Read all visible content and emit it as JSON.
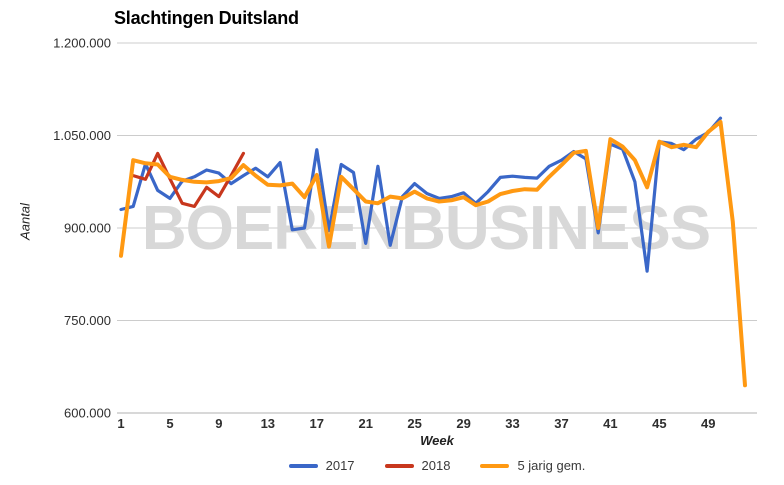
{
  "watermark": "BOERENBUSINESS",
  "chart_data": {
    "type": "line",
    "title": "Slachtingen Duitsland",
    "xlabel": "Week",
    "ylabel": "Aantal",
    "xlim": [
      1,
      52
    ],
    "ylim": [
      600000,
      1200000
    ],
    "grid": true,
    "legend_position": "bottom",
    "x_ticks": [
      1,
      5,
      9,
      13,
      17,
      21,
      25,
      29,
      33,
      37,
      41,
      45,
      49
    ],
    "y_ticks": [
      {
        "value": 1200000,
        "label": "1.200.000"
      },
      {
        "value": 1050000,
        "label": "1.050.000"
      },
      {
        "value": 900000,
        "label": "900.000"
      },
      {
        "value": 750000,
        "label": "750.000"
      },
      {
        "value": 600000,
        "label": "600.000"
      }
    ],
    "series": [
      {
        "name": "2017",
        "color": "#3a67c8",
        "start_week": 1,
        "values": [
          930000,
          935000,
          1004000,
          961000,
          948000,
          976000,
          983000,
          994000,
          989000,
          972000,
          985000,
          997000,
          983000,
          1006000,
          897000,
          900000,
          1027000,
          896000,
          1003000,
          990000,
          875000,
          1000000,
          872000,
          951000,
          972000,
          956000,
          948000,
          951000,
          957000,
          940000,
          959000,
          982000,
          984000,
          982000,
          981000,
          1000000,
          1010000,
          1024000,
          1012000,
          892000,
          1036000,
          1028000,
          975000,
          830000,
          1040000,
          1037000,
          1027000,
          1044000,
          1055000,
          1078000
        ]
      },
      {
        "name": "2018",
        "color": "#c8371d",
        "start_week": 2,
        "values": [
          985000,
          979000,
          1021000,
          980000,
          940000,
          935000,
          966000,
          951000,
          985000,
          1021000
        ]
      },
      {
        "name": "5 jarig gem.",
        "color": "#ff9912",
        "start_week": 1,
        "values": [
          855000,
          1010000,
          1005000,
          1003000,
          983000,
          978000,
          975000,
          974000,
          976000,
          981000,
          1002000,
          985000,
          970000,
          969000,
          972000,
          950000,
          986000,
          870000,
          983000,
          963000,
          943000,
          940000,
          951000,
          948000,
          959000,
          948000,
          943000,
          945000,
          950000,
          937000,
          943000,
          955000,
          960000,
          963000,
          962000,
          983000,
          1002000,
          1022000,
          1025000,
          900000,
          1044000,
          1032000,
          1010000,
          966000,
          1040000,
          1031000,
          1035000,
          1031000,
          1056000,
          1072000,
          910000,
          645000
        ]
      }
    ]
  }
}
